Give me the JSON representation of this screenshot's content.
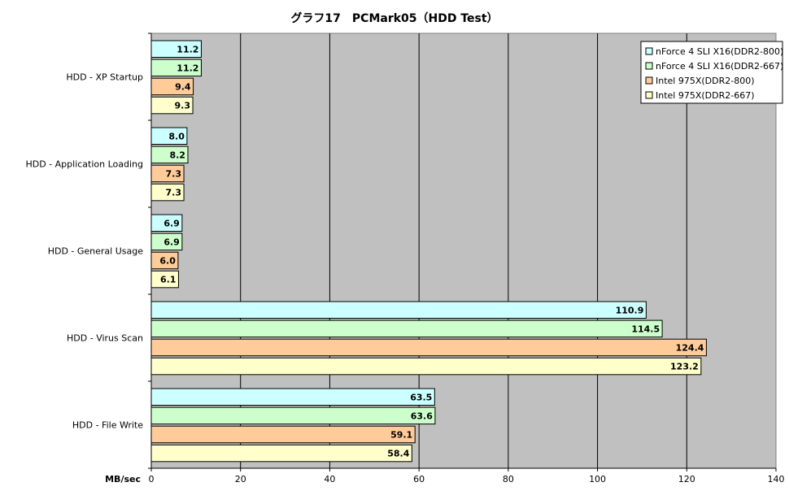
{
  "chart_data": {
    "type": "bar",
    "orientation": "horizontal",
    "title": "グラフ17　PCMark05（HDD Test）",
    "xlabel": "MB/sec",
    "ylabel": "",
    "xlim": [
      0,
      140
    ],
    "x_ticks": [
      "0",
      "20",
      "40",
      "60",
      "80",
      "100",
      "120",
      "140"
    ],
    "grid": "vertical",
    "plot_background": "#c0c0c0",
    "legend_position": "top-right",
    "categories": [
      "HDD - XP Startup",
      "HDD - Application Loading",
      "HDD - General Usage",
      "HDD - Virus Scan",
      "HDD - File Write"
    ],
    "series": [
      {
        "name": "nForce 4 SLI X16(DDR2-800)",
        "color": "#ccffff",
        "values": [
          11.2,
          8.0,
          6.9,
          110.9,
          63.5
        ],
        "labels": [
          "11.2",
          "8.0",
          "6.9",
          "110.9",
          "63.5"
        ]
      },
      {
        "name": "nForce 4 SLI X16(DDR2-667)",
        "color": "#ccffcc",
        "values": [
          11.2,
          8.2,
          6.9,
          114.5,
          63.6
        ],
        "labels": [
          "11.2",
          "8.2",
          "6.9",
          "114.5",
          "63.6"
        ]
      },
      {
        "name": "Intel 975X(DDR2-800)",
        "color": "#ffcc99",
        "values": [
          9.4,
          7.3,
          6.0,
          124.4,
          59.1
        ],
        "labels": [
          "9.4",
          "7.3",
          "6.0",
          "124.4",
          "59.1"
        ]
      },
      {
        "name": "Intel 975X(DDR2-667)",
        "color": "#ffffcc",
        "values": [
          9.3,
          7.3,
          6.1,
          123.2,
          58.4
        ],
        "labels": [
          "9.3",
          "7.3",
          "6.1",
          "123.2",
          "58.4"
        ]
      }
    ]
  }
}
